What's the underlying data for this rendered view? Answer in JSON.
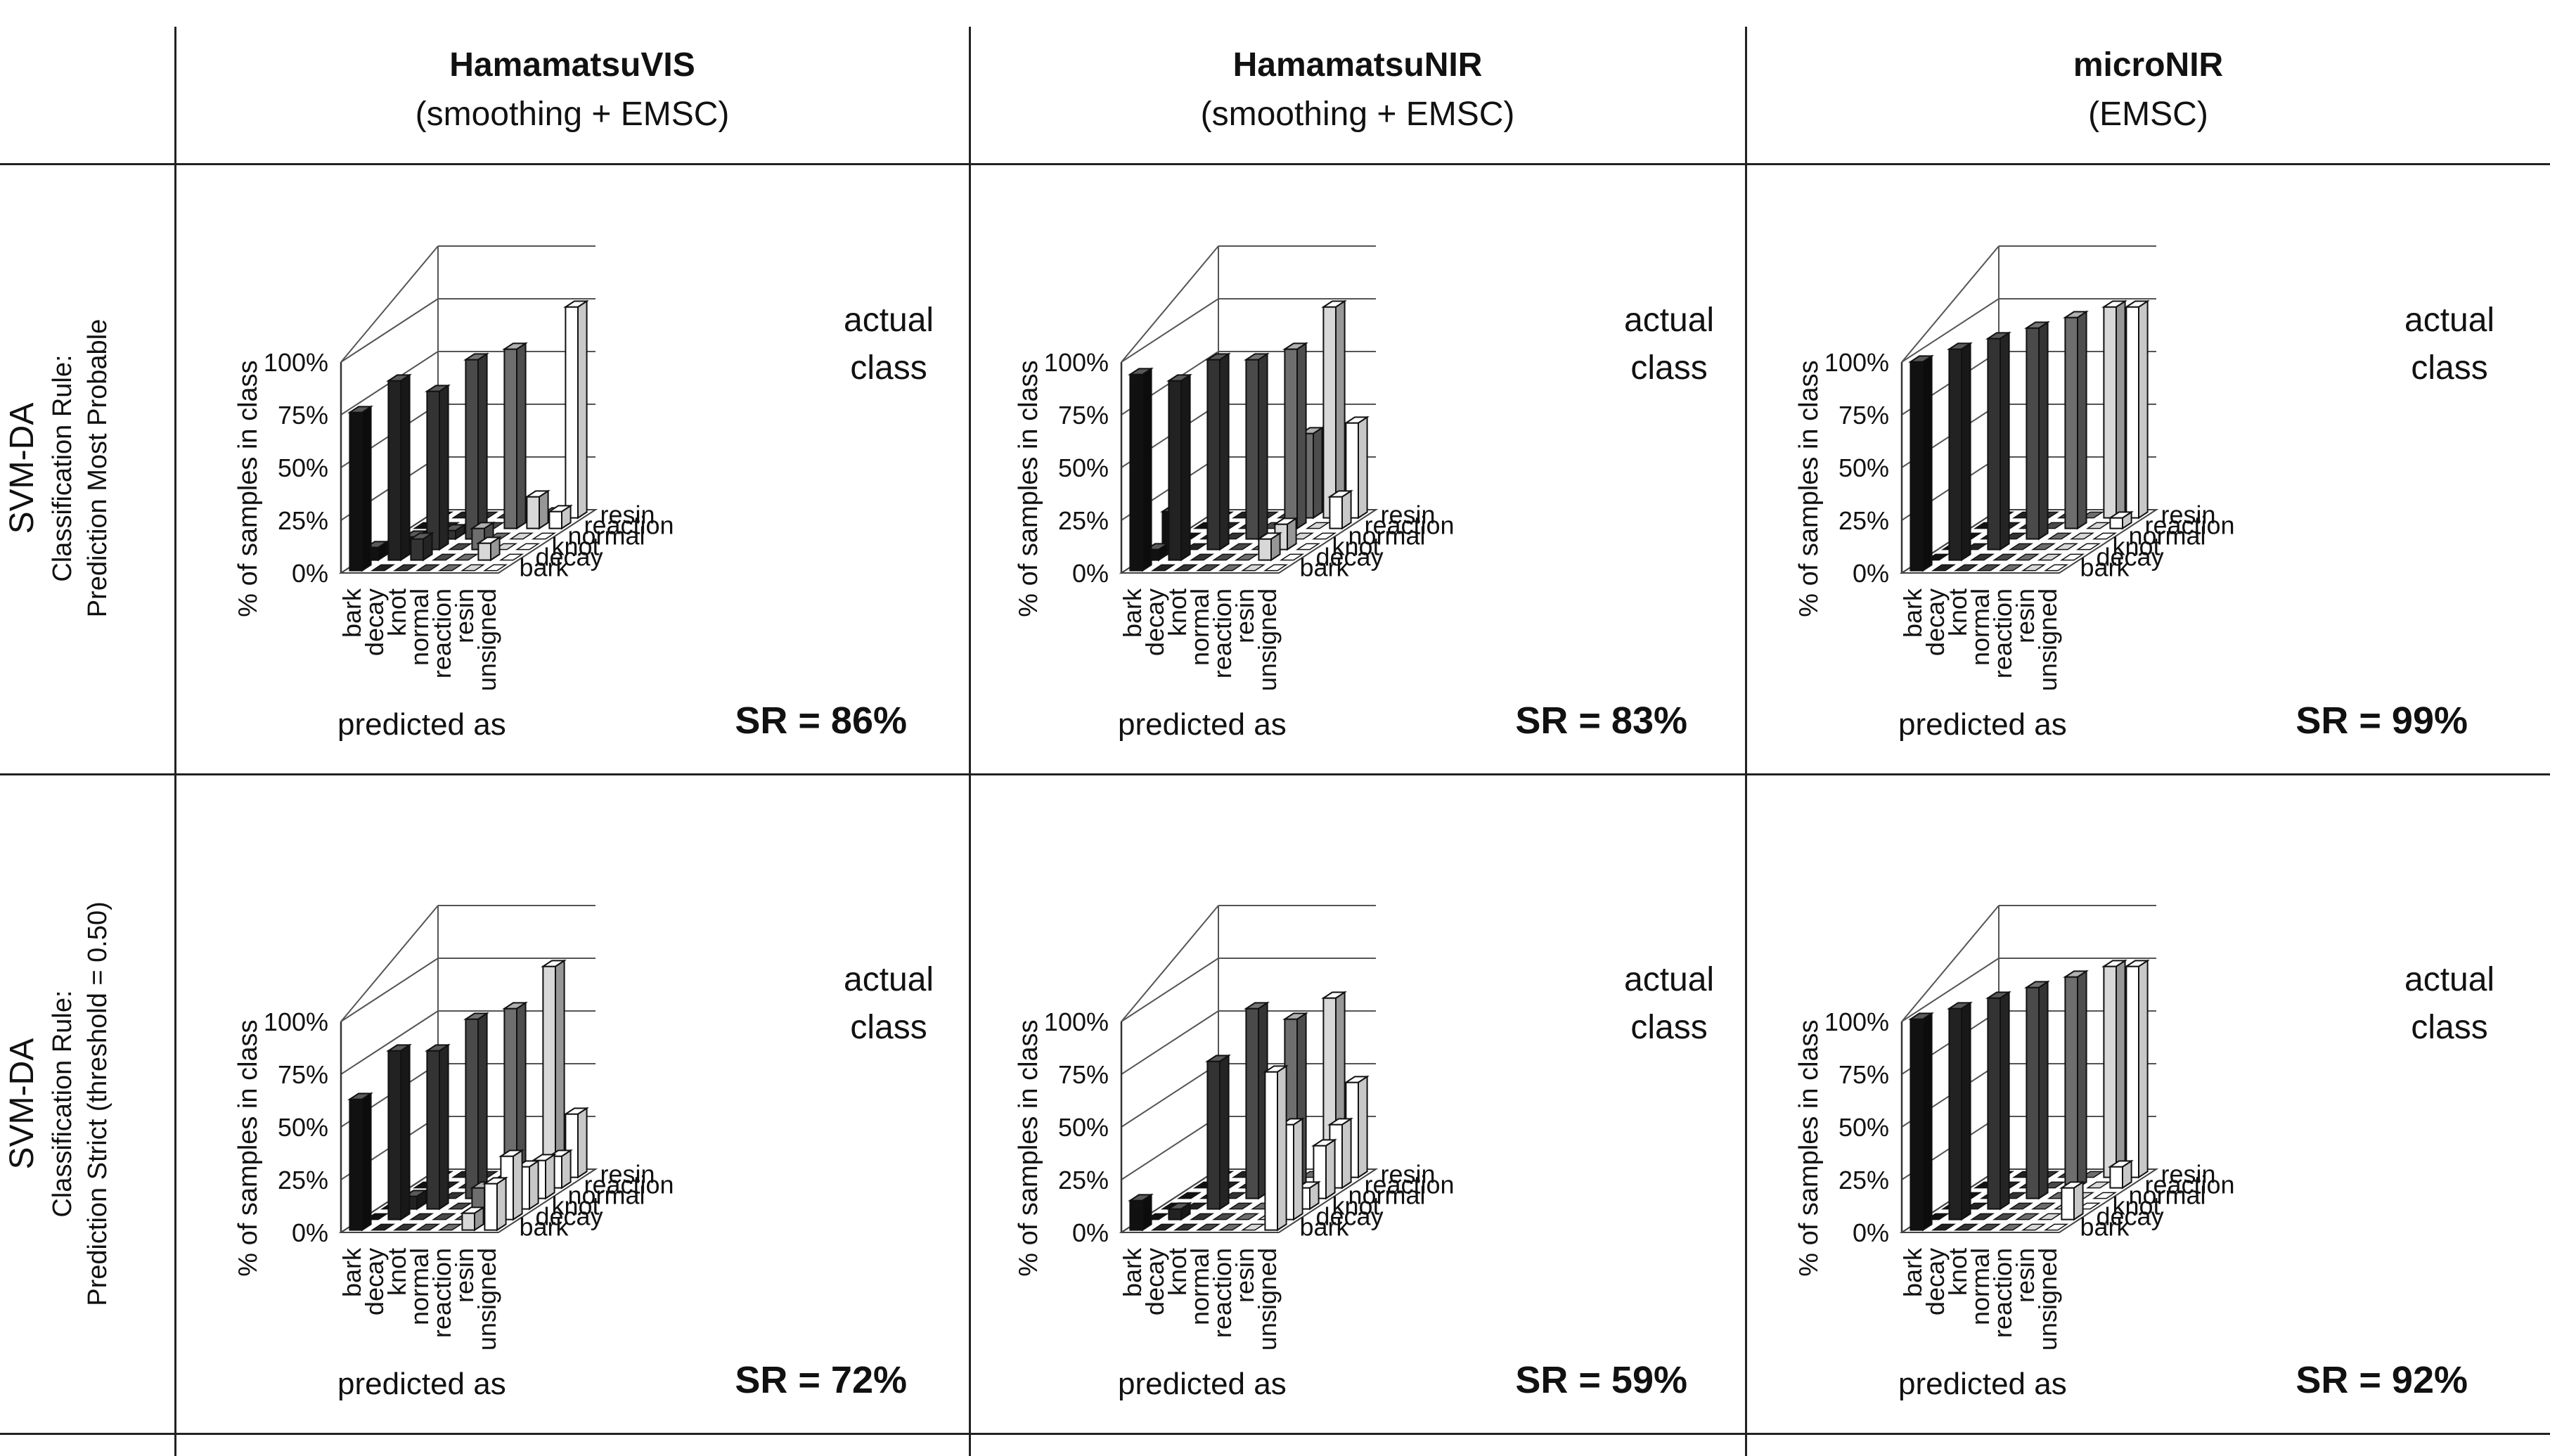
{
  "columns": [
    {
      "name": "HamamatsuVIS",
      "preprocessing": "(smoothing + EMSC)"
    },
    {
      "name": "HamamatsuNIR",
      "preprocessing": "(smoothing + EMSC)"
    },
    {
      "name": "microNIR",
      "preprocessing": "(EMSC)"
    }
  ],
  "rows": [
    {
      "model": "SVM-DA",
      "rule_line1": "Classification Rule:",
      "rule_line2": "Prediction Most Probable"
    },
    {
      "model": "SVM-DA",
      "rule_line1": "Classification Rule:",
      "rule_line2": "Prediction Strict (threshold = 0.50)"
    }
  ],
  "axis_labels": {
    "z": "% of samples in class",
    "x": "predicted as",
    "y_line1": "actual",
    "y_line2": "class"
  },
  "colors": {
    "bark": "#111111",
    "decay": "#222222",
    "knot": "#333333",
    "normal": "#4a4a4a",
    "reaction": "#6e6e6e",
    "resin": "#d8d8d8",
    "unsigned": "#ffffff"
  },
  "chart_data": [
    {
      "type": "bar3d",
      "column": "HamamatsuVIS",
      "row": "Prediction Most Probable",
      "predicted_classes": [
        "bark",
        "decay",
        "knot",
        "normal",
        "reaction",
        "resin",
        "unsigned"
      ],
      "actual_classes": [
        "bark",
        "decay",
        "knot",
        "normal",
        "reaction",
        "resin"
      ],
      "zticks": [
        "0%",
        "25%",
        "50%",
        "75%",
        "100%"
      ],
      "zlim": [
        0,
        100
      ],
      "values": [
        [
          75,
          0,
          0,
          0,
          0,
          0,
          0
        ],
        [
          6,
          85,
          10,
          0,
          0,
          8,
          0
        ],
        [
          0,
          6,
          75,
          0,
          10,
          0,
          0
        ],
        [
          0,
          0,
          4,
          85,
          0,
          0,
          0
        ],
        [
          0,
          0,
          0,
          0,
          85,
          15,
          8
        ],
        [
          0,
          0,
          0,
          0,
          0,
          2,
          100
        ]
      ],
      "success_rate": "SR = 86%"
    },
    {
      "type": "bar3d",
      "column": "HamamatsuNIR",
      "row": "Prediction Most Probable",
      "predicted_classes": [
        "bark",
        "decay",
        "knot",
        "normal",
        "reaction",
        "resin",
        "unsigned"
      ],
      "actual_classes": [
        "bark",
        "decay",
        "knot",
        "normal",
        "reaction",
        "resin"
      ],
      "zticks": [
        "0%",
        "25%",
        "50%",
        "75%",
        "100%"
      ],
      "zlim": [
        0,
        100
      ],
      "values": [
        [
          93,
          0,
          0,
          0,
          0,
          0,
          0
        ],
        [
          5,
          85,
          0,
          0,
          0,
          10,
          0
        ],
        [
          18,
          0,
          90,
          0,
          0,
          12,
          0
        ],
        [
          0,
          0,
          0,
          85,
          0,
          0,
          0
        ],
        [
          0,
          0,
          0,
          0,
          85,
          0,
          15
        ],
        [
          0,
          0,
          0,
          0,
          40,
          100,
          45
        ]
      ],
      "success_rate": "SR = 83%"
    },
    {
      "type": "bar3d",
      "column": "microNIR",
      "row": "Prediction Most Probable",
      "predicted_classes": [
        "bark",
        "decay",
        "knot",
        "normal",
        "reaction",
        "resin",
        "unsigned"
      ],
      "actual_classes": [
        "bark",
        "decay",
        "knot",
        "normal",
        "reaction",
        "resin"
      ],
      "zticks": [
        "0%",
        "25%",
        "50%",
        "75%",
        "100%"
      ],
      "zlim": [
        0,
        100
      ],
      "values": [
        [
          99,
          0,
          0,
          0,
          0,
          0,
          0
        ],
        [
          0,
          100,
          0,
          0,
          0,
          0,
          0
        ],
        [
          0,
          0,
          100,
          0,
          0,
          0,
          0
        ],
        [
          0,
          0,
          0,
          100,
          0,
          0,
          0
        ],
        [
          0,
          0,
          0,
          0,
          100,
          0,
          5
        ],
        [
          0,
          0,
          0,
          0,
          0,
          100,
          100
        ]
      ],
      "success_rate": "SR = 99%"
    },
    {
      "type": "bar3d",
      "column": "HamamatsuVIS",
      "row": "Prediction Strict (threshold = 0.50)",
      "predicted_classes": [
        "bark",
        "decay",
        "knot",
        "normal",
        "reaction",
        "resin",
        "unsigned"
      ],
      "actual_classes": [
        "bark",
        "decay",
        "knot",
        "normal",
        "reaction",
        "resin"
      ],
      "zticks": [
        "0%",
        "25%",
        "50%",
        "75%",
        "100%"
      ],
      "zlim": [
        0,
        100
      ],
      "values": [
        [
          62,
          0,
          0,
          0,
          0,
          8,
          22
        ],
        [
          0,
          80,
          0,
          0,
          0,
          0,
          30
        ],
        [
          0,
          6,
          75,
          0,
          10,
          0,
          20
        ],
        [
          0,
          0,
          0,
          85,
          0,
          0,
          18
        ],
        [
          0,
          0,
          0,
          0,
          85,
          10,
          15
        ],
        [
          0,
          0,
          0,
          0,
          0,
          100,
          30
        ]
      ],
      "success_rate": "SR = 72%"
    },
    {
      "type": "bar3d",
      "column": "HamamatsuNIR",
      "row": "Prediction Strict (threshold = 0.50)",
      "predicted_classes": [
        "bark",
        "decay",
        "knot",
        "normal",
        "reaction",
        "resin",
        "unsigned"
      ],
      "actual_classes": [
        "bark",
        "decay",
        "knot",
        "normal",
        "reaction",
        "resin"
      ],
      "zticks": [
        "0%",
        "25%",
        "50%",
        "75%",
        "100%"
      ],
      "zlim": [
        0,
        100
      ],
      "values": [
        [
          14,
          0,
          0,
          0,
          0,
          0,
          75
        ],
        [
          0,
          5,
          0,
          0,
          0,
          0,
          45
        ],
        [
          0,
          0,
          70,
          0,
          0,
          0,
          10
        ],
        [
          0,
          0,
          0,
          90,
          0,
          0,
          25
        ],
        [
          0,
          0,
          0,
          0,
          80,
          0,
          30
        ],
        [
          0,
          0,
          0,
          0,
          0,
          85,
          45
        ]
      ],
      "success_rate": "SR = 59%"
    },
    {
      "type": "bar3d",
      "column": "microNIR",
      "row": "Prediction Strict (threshold = 0.50)",
      "predicted_classes": [
        "bark",
        "decay",
        "knot",
        "normal",
        "reaction",
        "resin",
        "unsigned"
      ],
      "actual_classes": [
        "bark",
        "decay",
        "knot",
        "normal",
        "reaction",
        "resin"
      ],
      "zticks": [
        "0%",
        "25%",
        "50%",
        "75%",
        "100%"
      ],
      "zlim": [
        0,
        100
      ],
      "values": [
        [
          100,
          0,
          0,
          0,
          0,
          0,
          0
        ],
        [
          0,
          100,
          0,
          0,
          0,
          0,
          15
        ],
        [
          0,
          0,
          100,
          0,
          0,
          0,
          0
        ],
        [
          0,
          0,
          0,
          100,
          0,
          0,
          0
        ],
        [
          0,
          0,
          0,
          0,
          100,
          0,
          10
        ],
        [
          0,
          0,
          0,
          0,
          0,
          100,
          100
        ]
      ],
      "success_rate": "SR = 92%"
    }
  ]
}
